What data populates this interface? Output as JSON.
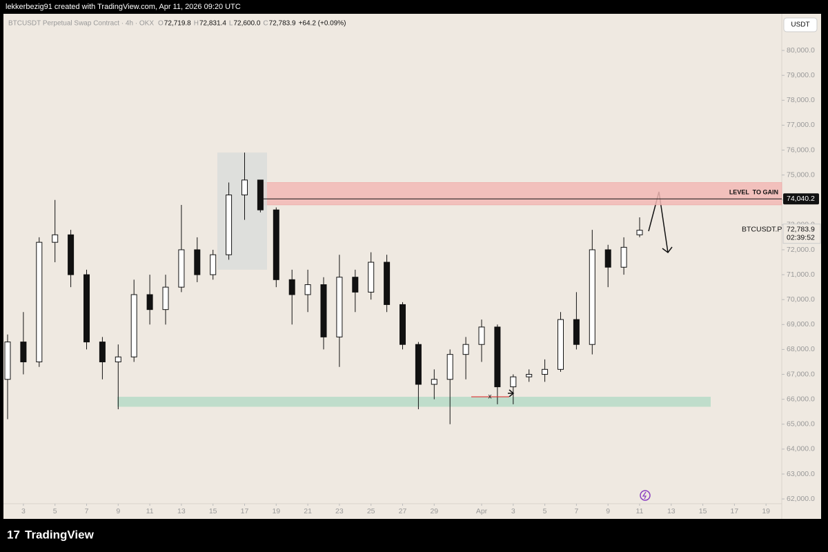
{
  "header": {
    "credit": "lekkerbezig91 created with TradingView.com, Apr 11, 2026 09:20 UTC"
  },
  "legend": {
    "symbol": "BTCUSDT Perpetual Swap Contract · 4h · OKX",
    "items": [
      {
        "key": "O",
        "value": "72,719.8"
      },
      {
        "key": "H",
        "value": "72,831.4"
      },
      {
        "key": "L",
        "value": "72,600.0"
      },
      {
        "key": "C",
        "value": "72,783.9"
      }
    ],
    "change": "+64.2 (+0.09%)"
  },
  "currency": "USDT",
  "footer": {
    "brand": "TradingView"
  },
  "chart_data": {
    "type": "candlestick",
    "categories": [
      null,
      "3",
      null,
      "5",
      null,
      "7",
      null,
      "9",
      null,
      "11",
      null,
      "13",
      null,
      "15",
      null,
      "17",
      null,
      "19",
      null,
      "21",
      null,
      "23",
      null,
      "25",
      null,
      "27",
      null,
      "29",
      null,
      null,
      "Apr",
      null,
      "3",
      null,
      "5",
      null,
      "7",
      null,
      "9",
      null,
      "11",
      null,
      "13",
      null,
      "15",
      null,
      "17",
      null,
      "19"
    ],
    "open": [
      66800,
      68300,
      67500,
      72300,
      72600,
      71000,
      68300,
      67500,
      67700,
      70200,
      69600,
      70500,
      72000,
      71000,
      71800,
      74200,
      74800,
      73600,
      70800,
      70200,
      70600,
      68500,
      70900,
      70300,
      71500,
      69800,
      68200,
      66600,
      66800,
      67800,
      68200,
      68900,
      66500,
      66900,
      67000,
      67200,
      69200,
      68200,
      72000,
      71300,
      72600,
      null,
      null,
      null,
      null,
      null,
      null,
      null,
      null
    ],
    "high": [
      68600,
      69500,
      72500,
      74000,
      72800,
      71200,
      68500,
      68200,
      70800,
      71000,
      71000,
      73800,
      72500,
      72000,
      74700,
      75900,
      74800,
      73700,
      71200,
      71200,
      70900,
      71800,
      71200,
      71900,
      71800,
      69900,
      68300,
      67200,
      68000,
      68500,
      69200,
      69000,
      67000,
      67200,
      67600,
      69500,
      70300,
      72800,
      72200,
      72500,
      73300,
      null,
      null,
      null,
      null,
      null,
      null,
      null,
      null
    ],
    "low": [
      65200,
      67000,
      67300,
      71500,
      70500,
      68000,
      66800,
      65600,
      67500,
      69000,
      69000,
      70300,
      70700,
      70800,
      71600,
      73200,
      73500,
      70500,
      69000,
      69500,
      68000,
      67300,
      69500,
      70000,
      69500,
      68000,
      65600,
      66000,
      65000,
      66800,
      67500,
      65800,
      65800,
      66700,
      66700,
      67100,
      68000,
      67800,
      70500,
      71000,
      72500,
      null,
      null,
      null,
      null,
      null,
      null,
      null,
      null
    ],
    "close": [
      68300,
      67500,
      72300,
      72600,
      71000,
      68300,
      67500,
      67700,
      70200,
      69600,
      70500,
      72000,
      71000,
      71800,
      74200,
      74800,
      73600,
      70800,
      70200,
      70600,
      68500,
      70900,
      70300,
      71500,
      69800,
      68200,
      66600,
      66800,
      67800,
      68200,
      68900,
      66500,
      66900,
      67000,
      67200,
      69200,
      68200,
      72000,
      71300,
      72100,
      72783.9,
      null,
      null,
      null,
      null,
      null,
      null,
      null,
      null
    ],
    "ylim": [
      61200,
      81470
    ],
    "yticks": [
      {
        "value": 62000,
        "label": "62,000.0"
      },
      {
        "value": 63000,
        "label": "63,000.0"
      },
      {
        "value": 64000,
        "label": "64,000.0"
      },
      {
        "value": 65000,
        "label": "65,000.0"
      },
      {
        "value": 66000,
        "label": "66,000.0"
      },
      {
        "value": 67000,
        "label": "67,000.0"
      },
      {
        "value": 68000,
        "label": "68,000.0"
      },
      {
        "value": 69000,
        "label": "69,000.0"
      },
      {
        "value": 70000,
        "label": "70,000.0"
      },
      {
        "value": 71000,
        "label": "71,000.0"
      },
      {
        "value": 72000,
        "label": "72,000.0"
      },
      {
        "value": 73000,
        "label": "73,000.0"
      },
      {
        "value": 74000,
        "label": "74,000.0"
      },
      {
        "value": 75000,
        "label": "75,000.0"
      },
      {
        "value": 76000,
        "label": "76,000.0"
      },
      {
        "value": 77000,
        "label": "77,000.0"
      },
      {
        "value": 78000,
        "label": "78,000.0"
      },
      {
        "value": 79000,
        "label": "79,000.0"
      },
      {
        "value": 80000,
        "label": "80,000.0"
      }
    ],
    "level": {
      "value": 74040.2,
      "label": "74,040.2",
      "text": "LEVEL  TO GAIN"
    },
    "resistance_zone": {
      "top": 74700,
      "bottom": 73800
    },
    "support_zone": {
      "top": 66100,
      "bottom": 65700
    },
    "profile_box": {
      "top": 75900,
      "bottom": 71200
    },
    "last_price": {
      "value": 72783.9,
      "label": "72,783.9",
      "symbol": "BTCUSDT.P",
      "countdown": "02:39:52"
    },
    "marker": "x"
  }
}
